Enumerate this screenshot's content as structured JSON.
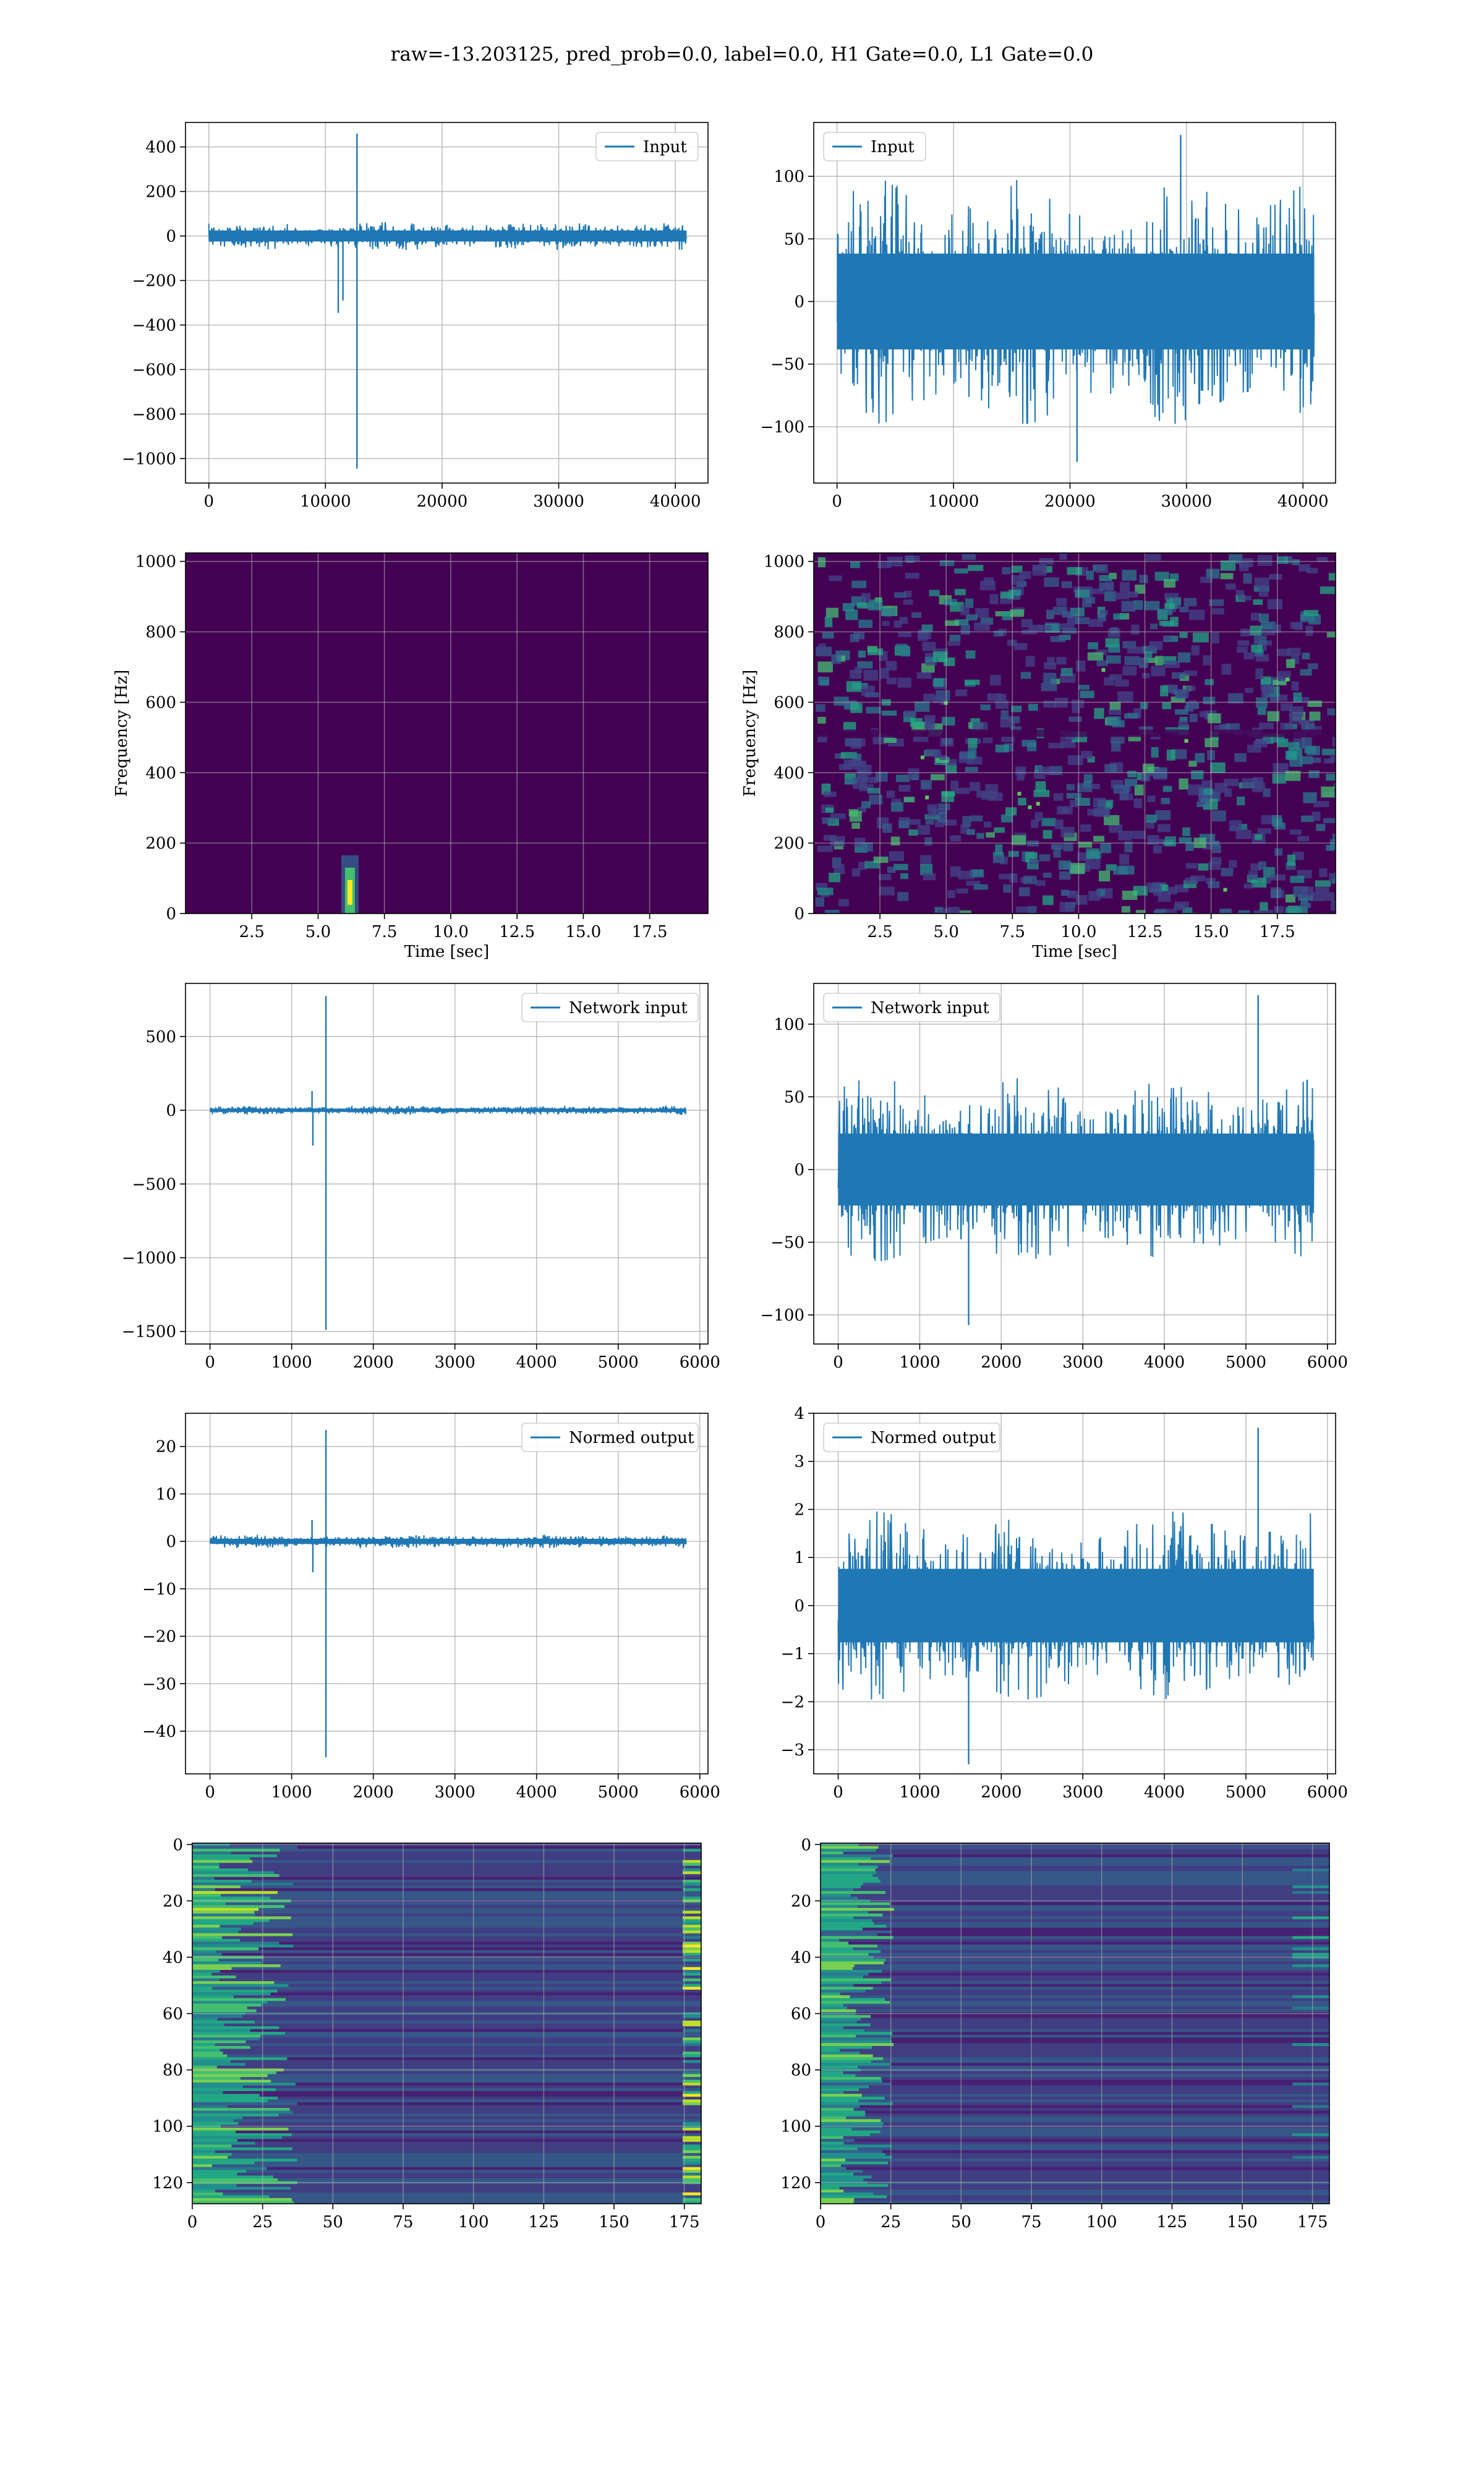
{
  "figure": {
    "suptitle": "raw=-13.203125, pred_prob=0.0, label=0.0, H1 Gate=0.0, L1 Gate=0.0"
  },
  "colors": {
    "series": "#1f77b4",
    "grid": "#b0b0b0",
    "viridis_dark": "#440154",
    "viridis_mid": "#31688e",
    "viridis_teal": "#21918c",
    "viridis_green": "#5ec962",
    "viridis_yellow": "#fde725"
  },
  "chart_data": [
    {
      "id": "input-h1",
      "type": "line",
      "legend": "Input",
      "legend_position": "upper right",
      "xlim": [
        -2000,
        42800
      ],
      "ylim": [
        -1110,
        510
      ],
      "xticks": [
        0,
        10000,
        20000,
        30000,
        40000
      ],
      "yticks": [
        400,
        200,
        0,
        -200,
        -400,
        -600,
        -800,
        -1000
      ],
      "x_extent": [
        0,
        40960
      ],
      "noise_amplitude": 55,
      "features": [
        {
          "x": 12700,
          "y": 460
        },
        {
          "x": 12700,
          "y": -1045
        },
        {
          "x": 11100,
          "y": -345
        },
        {
          "x": 11500,
          "y": -290
        }
      ],
      "grid": true
    },
    {
      "id": "input-l1",
      "type": "line",
      "legend": "Input",
      "legend_position": "upper left",
      "xlim": [
        -2000,
        42800
      ],
      "ylim": [
        -145,
        143
      ],
      "xticks": [
        0,
        10000,
        20000,
        30000,
        40000
      ],
      "yticks": [
        100,
        50,
        0,
        -50,
        -100
      ],
      "x_extent": [
        0,
        40960
      ],
      "noise_amplitude": 85,
      "features": [
        {
          "x": 29500,
          "y": 133
        },
        {
          "x": 20600,
          "y": -128
        }
      ],
      "grid": true
    },
    {
      "id": "spectrogram-h1",
      "type": "heatmap",
      "xlabel": "Time [sec]",
      "ylabel": "Frequency [Hz]",
      "xlim": [
        0,
        19.7
      ],
      "ylim": [
        0,
        1024
      ],
      "xticks": [
        2.5,
        5.0,
        7.5,
        10.0,
        12.5,
        15.0,
        17.5
      ],
      "xticklabels": [
        "2.5",
        "5.0",
        "7.5",
        "10.0",
        "12.5",
        "15.0",
        "17.5"
      ],
      "yticks": [
        0,
        200,
        400,
        600,
        800,
        1000
      ],
      "background": "dark",
      "hotspots": [
        {
          "t": 6.2,
          "f": 60,
          "level": "yellow"
        }
      ],
      "grid": true
    },
    {
      "id": "spectrogram-l1",
      "type": "heatmap",
      "xlabel": "Time [sec]",
      "ylabel": "Frequency [Hz]",
      "xlim": [
        0,
        19.7
      ],
      "ylim": [
        0,
        1024
      ],
      "xticks": [
        2.5,
        5.0,
        7.5,
        10.0,
        12.5,
        15.0,
        17.5
      ],
      "xticklabels": [
        "2.5",
        "5.0",
        "7.5",
        "10.0",
        "12.5",
        "15.0",
        "17.5"
      ],
      "yticks": [
        0,
        200,
        400,
        600,
        800,
        1000
      ],
      "background": "speckled",
      "grid": true
    },
    {
      "id": "network-input-h1",
      "type": "line",
      "legend": "Network input",
      "legend_position": "upper right",
      "xlim": [
        -300,
        6100
      ],
      "ylim": [
        -1585,
        860
      ],
      "xticks": [
        0,
        1000,
        2000,
        3000,
        4000,
        5000,
        6000
      ],
      "yticks": [
        500,
        0,
        -500,
        -1000,
        -1500
      ],
      "x_extent": [
        0,
        5832
      ],
      "noise_amplitude": 25,
      "features": [
        {
          "x": 1420,
          "y": 775
        },
        {
          "x": 1420,
          "y": -1490
        },
        {
          "x": 1250,
          "y": 130
        },
        {
          "x": 1260,
          "y": -240
        }
      ],
      "grid": true
    },
    {
      "id": "network-input-l1",
      "type": "line",
      "legend": "Network input",
      "legend_position": "upper left",
      "xlim": [
        -300,
        6100
      ],
      "ylim": [
        -120,
        128
      ],
      "xticks": [
        0,
        1000,
        2000,
        3000,
        4000,
        5000,
        6000
      ],
      "yticks": [
        100,
        50,
        0,
        -50,
        -100
      ],
      "x_extent": [
        0,
        5832
      ],
      "noise_amplitude": 55,
      "features": [
        {
          "x": 5150,
          "y": 120
        },
        {
          "x": 1600,
          "y": -107
        }
      ],
      "grid": true
    },
    {
      "id": "normed-output-h1",
      "type": "line",
      "legend": "Normed output",
      "legend_position": "upper right",
      "xlim": [
        -300,
        6100
      ],
      "ylim": [
        -49,
        27
      ],
      "xticks": [
        0,
        1000,
        2000,
        3000,
        4000,
        5000,
        6000
      ],
      "yticks": [
        20,
        10,
        0,
        -10,
        -20,
        -30,
        -40
      ],
      "x_extent": [
        0,
        5832
      ],
      "noise_amplitude": 1.2,
      "features": [
        {
          "x": 1420,
          "y": 23.5
        },
        {
          "x": 1420,
          "y": -45.5
        },
        {
          "x": 1250,
          "y": 4.5
        },
        {
          "x": 1260,
          "y": -6.5
        }
      ],
      "grid": true
    },
    {
      "id": "normed-output-l1",
      "type": "line",
      "legend": "Normed output",
      "legend_position": "upper left",
      "xlim": [
        -300,
        6100
      ],
      "ylim": [
        -3.5,
        4.0
      ],
      "xticks": [
        0,
        1000,
        2000,
        3000,
        4000,
        5000,
        6000
      ],
      "yticks": [
        4,
        3,
        2,
        1,
        0,
        -1,
        -2,
        -3
      ],
      "x_extent": [
        0,
        5832
      ],
      "noise_amplitude": 1.7,
      "features": [
        {
          "x": 5150,
          "y": 3.7
        },
        {
          "x": 1600,
          "y": -3.3
        }
      ],
      "grid": true
    },
    {
      "id": "feature-map-h1",
      "type": "heatmap",
      "xlim": [
        0,
        181
      ],
      "ylim": [
        127.5,
        -0.5
      ],
      "xticks": [
        0,
        25,
        50,
        75,
        100,
        125,
        150,
        175
      ],
      "yticks": [
        0,
        20,
        40,
        60,
        80,
        100,
        120
      ],
      "rows": 128,
      "cols": 181,
      "grid": true
    },
    {
      "id": "feature-map-l1",
      "type": "heatmap",
      "xlim": [
        0,
        181
      ],
      "ylim": [
        127.5,
        -0.5
      ],
      "xticks": [
        0,
        25,
        50,
        75,
        100,
        125,
        150,
        175
      ],
      "yticks": [
        0,
        20,
        40,
        60,
        80,
        100,
        120
      ],
      "rows": 128,
      "cols": 181,
      "grid": true
    }
  ]
}
